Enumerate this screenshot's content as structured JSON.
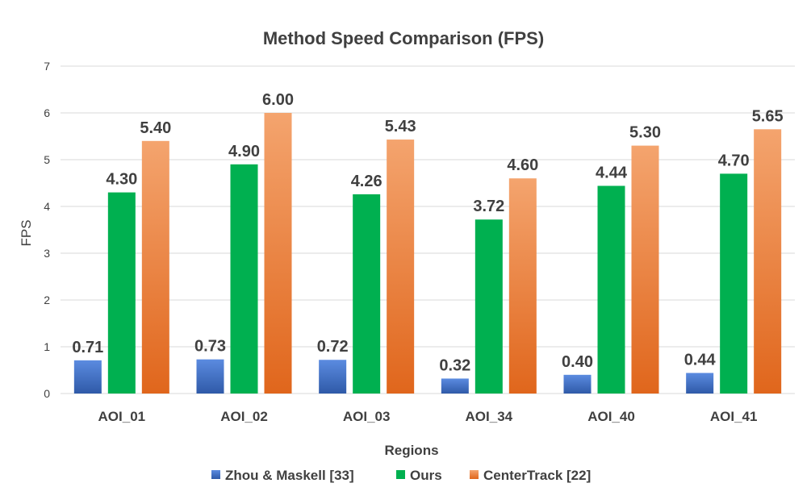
{
  "chart_data": {
    "type": "bar",
    "title": "Method Speed Comparison (FPS)",
    "xlabel": "Regions",
    "ylabel": "FPS",
    "ylim": [
      0,
      7
    ],
    "yticks": [
      0,
      1,
      2,
      3,
      4,
      5,
      6,
      7
    ],
    "grid": true,
    "legend_position": "bottom",
    "categories": [
      "AOI_01",
      "AOI_02",
      "AOI_03",
      "AOI_34",
      "AOI_40",
      "AOI_41"
    ],
    "series": [
      {
        "name": "Zhou & Maskell [33]",
        "color": "#4472c4",
        "color_light": "#5b8be0",
        "color_dark": "#2f5aa8",
        "values": [
          0.71,
          0.73,
          0.72,
          0.32,
          0.4,
          0.44
        ],
        "labels": [
          "0.71",
          "0.73",
          "0.72",
          "0.32",
          "0.40",
          "0.44"
        ]
      },
      {
        "name": "Ours",
        "color": "#00b050",
        "color_light": "#00b050",
        "color_dark": "#00b050",
        "values": [
          4.3,
          4.9,
          4.26,
          3.72,
          4.44,
          4.7
        ],
        "labels": [
          "4.30",
          "4.90",
          "4.26",
          "3.72",
          "4.44",
          "4.70"
        ]
      },
      {
        "name": "CenterTrack [22]",
        "color": "#ed7d31",
        "color_light": "#f4a46e",
        "color_dark": "#e0661c",
        "values": [
          5.4,
          6.0,
          5.43,
          4.6,
          5.3,
          5.65
        ],
        "labels": [
          "5.40",
          "6.00",
          "5.43",
          "4.60",
          "5.30",
          "5.65"
        ]
      }
    ]
  }
}
